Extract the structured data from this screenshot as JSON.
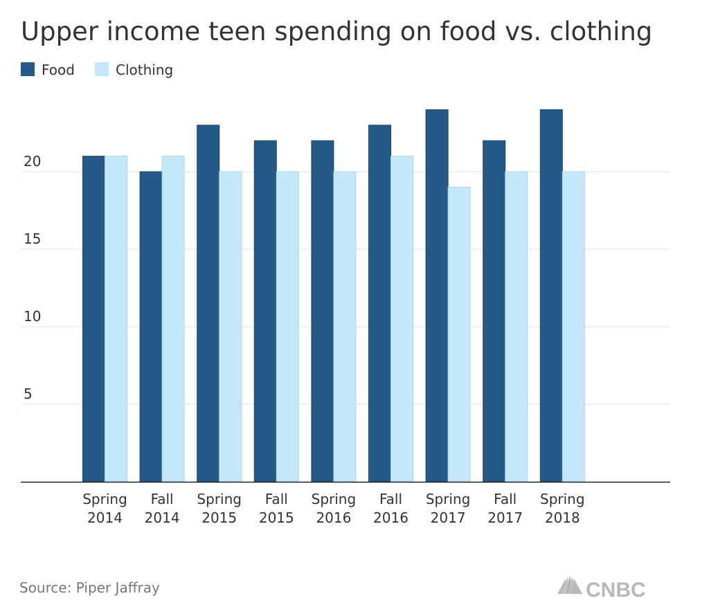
{
  "chart_data": {
    "type": "bar",
    "title": "Upper income teen spending on food vs. clothing",
    "categories": [
      [
        "Spring",
        "2014"
      ],
      [
        "Fall",
        "2014"
      ],
      [
        "Spring",
        "2015"
      ],
      [
        "Fall",
        "2015"
      ],
      [
        "Spring",
        "2016"
      ],
      [
        "Fall",
        "2016"
      ],
      [
        "Spring",
        "2017"
      ],
      [
        "Fall",
        "2017"
      ],
      [
        "Spring",
        "2018"
      ]
    ],
    "series": [
      {
        "name": "Food",
        "color": "#245a87",
        "values": [
          21,
          20,
          23,
          22,
          22,
          23,
          24,
          22,
          24
        ]
      },
      {
        "name": "Clothing",
        "color": "#c4e8fa",
        "values": [
          21,
          21,
          20,
          20,
          20,
          21,
          19,
          20,
          20
        ]
      }
    ],
    "ylim": [
      0,
      25
    ],
    "yticks": [
      "5",
      "10",
      "15",
      "20"
    ],
    "grid": true,
    "legend_position": "top-left",
    "xlabel": "",
    "ylabel": ""
  },
  "source": "Source: Piper Jaffray",
  "logo": {
    "text": "CNBC",
    "icon": "peacock-icon"
  }
}
